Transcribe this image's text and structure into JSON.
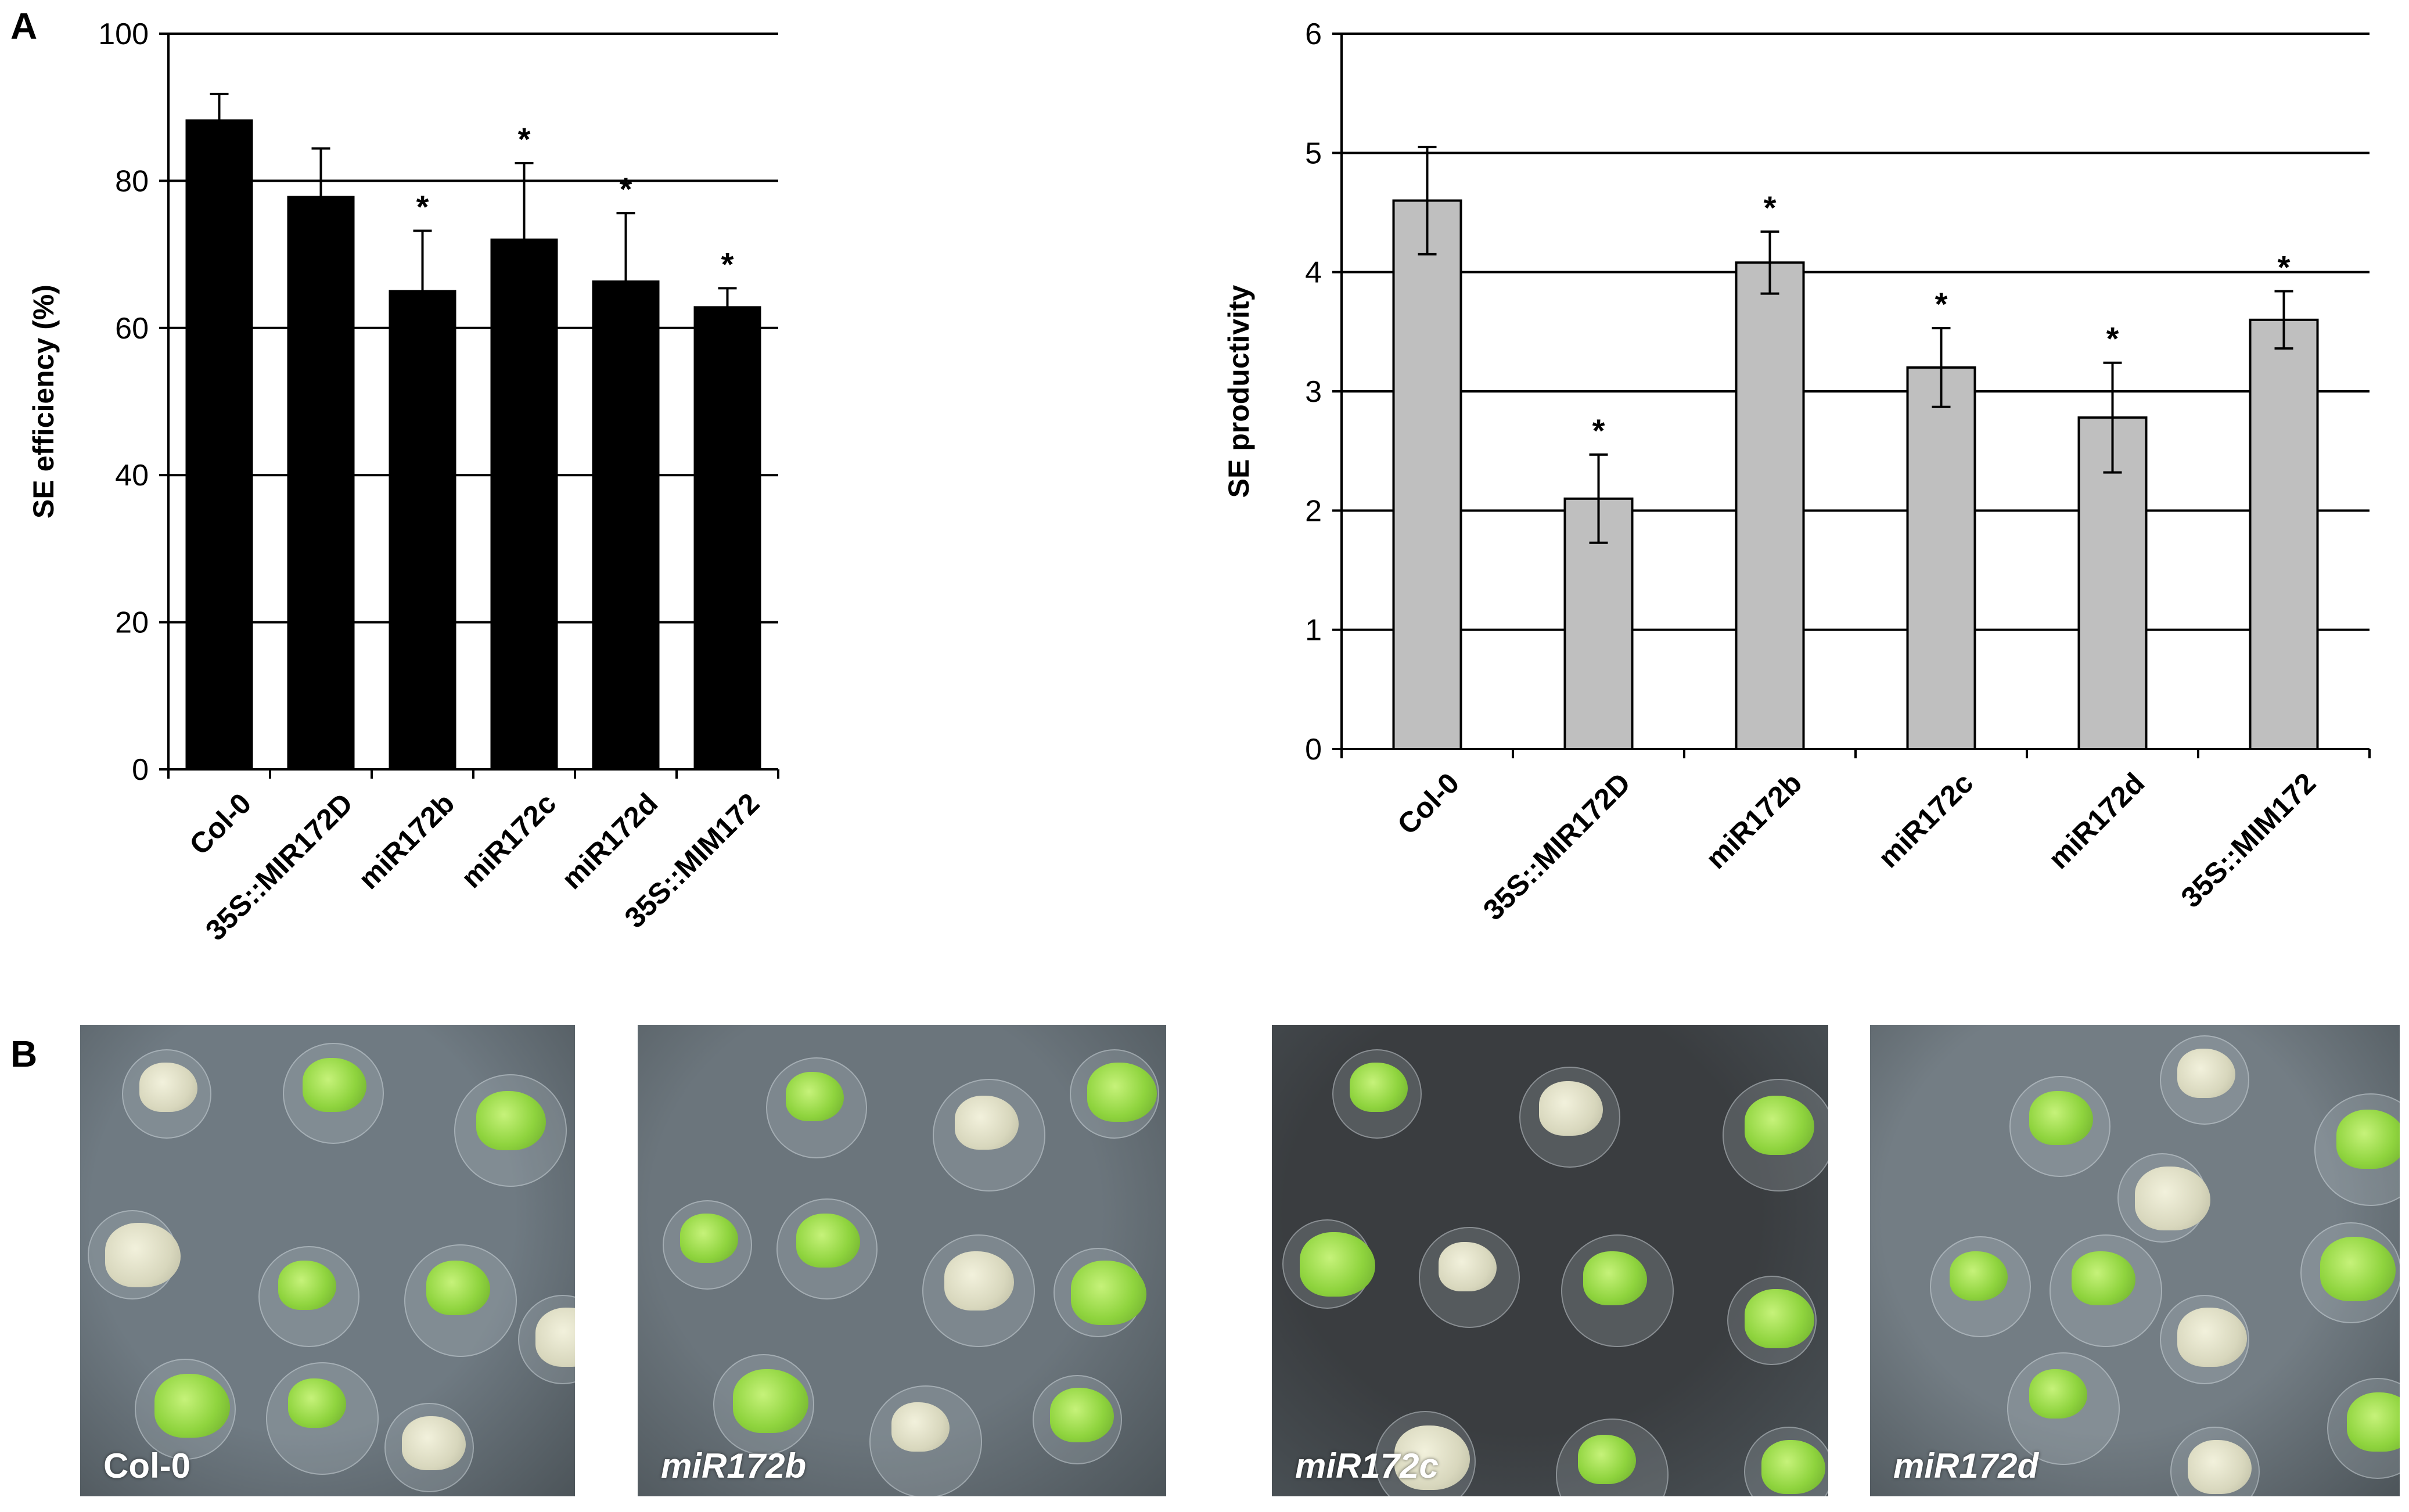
{
  "panel_labels": {
    "a": "A",
    "b": "B"
  },
  "chart_data": [
    {
      "type": "bar",
      "ylabel": "SE efficiency (%)",
      "xlabel": "",
      "ylim": [
        0,
        100
      ],
      "yticks": [
        0,
        20,
        40,
        60,
        80,
        100
      ],
      "grid": true,
      "bar_color": "#000000",
      "categories": [
        "Col-0",
        "35S::MIR172D",
        "miR172b",
        "miR172c",
        "miR172d",
        "35S::MIM172"
      ],
      "values": [
        88.2,
        77.8,
        65.0,
        72.0,
        66.3,
        62.8
      ],
      "errors": [
        3.6,
        6.6,
        8.2,
        10.4,
        9.3,
        2.6
      ],
      "significance": [
        "",
        "",
        "*",
        "*",
        "*",
        "*"
      ]
    },
    {
      "type": "bar",
      "ylabel": "SE productivity",
      "xlabel": "",
      "ylim": [
        0,
        6
      ],
      "yticks": [
        0,
        1,
        2,
        3,
        4,
        5,
        6
      ],
      "grid": true,
      "bar_color": "#bfbfbf",
      "categories": [
        "Col-0",
        "35S::MIR172D",
        "miR172b",
        "miR172c",
        "miR172d",
        "35S::MIM172"
      ],
      "values": [
        4.6,
        2.1,
        4.08,
        3.2,
        2.78,
        3.6
      ],
      "errors": [
        0.45,
        0.37,
        0.26,
        0.33,
        0.46,
        0.24
      ],
      "significance": [
        "",
        "*",
        "*",
        "*",
        "*",
        "*"
      ]
    }
  ],
  "photos": [
    {
      "label": "Col-0",
      "italic": false,
      "background": "#6f7a82"
    },
    {
      "label": "miR172b",
      "italic": true,
      "background": "#6b757c"
    },
    {
      "label": "miR172c",
      "italic": true,
      "background": "#3a3d40"
    },
    {
      "label": "miR172d",
      "italic": true,
      "background": "#737d84"
    }
  ]
}
